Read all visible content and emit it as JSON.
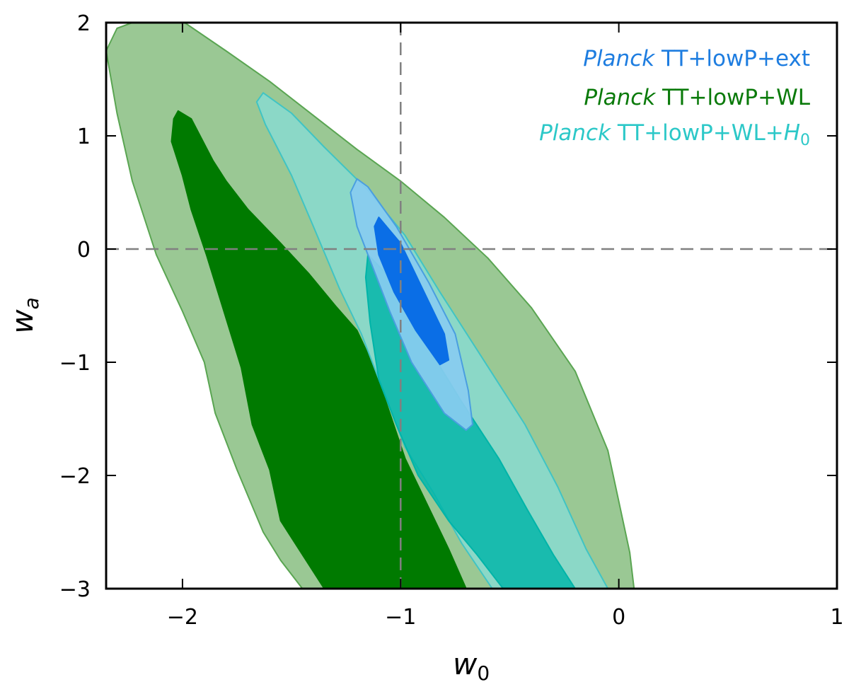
{
  "chart_data": {
    "type": "contour",
    "xlabel": "w",
    "xlabel_sub": "0",
    "ylabel": "w",
    "ylabel_sub": "a",
    "xlim": [
      -2.35,
      1.0
    ],
    "ylim": [
      -3.0,
      2.0
    ],
    "x_ticks": [
      -2,
      -1,
      0,
      1
    ],
    "x_tick_labels": [
      "−2",
      "−1",
      "0",
      "1"
    ],
    "y_ticks": [
      -3,
      -2,
      -1,
      0,
      1,
      2
    ],
    "y_tick_labels": [
      "−3",
      "−2",
      "−1",
      "0",
      "1",
      "2"
    ],
    "reference_lines": {
      "x": -1,
      "y": 0,
      "style": "dashed",
      "color": "#808080"
    },
    "legend_placement": "top-right",
    "series": [
      {
        "name_em": "Planck",
        "name_rest": " TT+lowP+WL",
        "color": "#0a7a0a",
        "contours": [
          {
            "level": "95%",
            "fill": "#9ac894",
            "stroke": "#5aa552",
            "points": [
              [
                -2.35,
                1.75
              ],
              [
                -2.3,
                1.95
              ],
              [
                -2.23,
                2.0
              ],
              [
                -1.99,
                2.0
              ],
              [
                -1.8,
                1.75
              ],
              [
                -1.6,
                1.48
              ],
              [
                -1.4,
                1.18
              ],
              [
                -1.2,
                0.88
              ],
              [
                -1.0,
                0.6
              ],
              [
                -0.8,
                0.28
              ],
              [
                -0.6,
                -0.08
              ],
              [
                -0.4,
                -0.52
              ],
              [
                -0.2,
                -1.08
              ],
              [
                -0.05,
                -1.78
              ],
              [
                0.05,
                -2.68
              ],
              [
                0.07,
                -3.0
              ],
              [
                -1.45,
                -3.0
              ],
              [
                -1.55,
                -2.75
              ],
              [
                -1.63,
                -2.5
              ],
              [
                -1.75,
                -1.95
              ],
              [
                -1.85,
                -1.45
              ],
              [
                -1.9,
                -1.0
              ],
              [
                -2.0,
                -0.55
              ],
              [
                -2.12,
                -0.05
              ],
              [
                -2.23,
                0.6
              ],
              [
                -2.3,
                1.2
              ]
            ]
          },
          {
            "level": "68%",
            "fill": "#007a00",
            "stroke": "#007a00",
            "points": [
              [
                -2.02,
                1.22
              ],
              [
                -1.96,
                1.15
              ],
              [
                -1.86,
                0.78
              ],
              [
                -1.8,
                0.6
              ],
              [
                -1.7,
                0.35
              ],
              [
                -1.55,
                0.05
              ],
              [
                -1.42,
                -0.22
              ],
              [
                -1.3,
                -0.5
              ],
              [
                -1.2,
                -0.72
              ],
              [
                -1.12,
                -1.05
              ],
              [
                -1.05,
                -1.45
              ],
              [
                -0.98,
                -1.85
              ],
              [
                -0.88,
                -2.25
              ],
              [
                -0.78,
                -2.65
              ],
              [
                -0.7,
                -3.0
              ],
              [
                -1.35,
                -3.0
              ],
              [
                -1.45,
                -2.7
              ],
              [
                -1.55,
                -2.4
              ],
              [
                -1.6,
                -1.95
              ],
              [
                -1.68,
                -1.55
              ],
              [
                -1.73,
                -1.05
              ],
              [
                -1.81,
                -0.55
              ],
              [
                -1.89,
                -0.05
              ],
              [
                -1.96,
                0.35
              ],
              [
                -2.0,
                0.65
              ],
              [
                -2.05,
                0.95
              ],
              [
                -2.04,
                1.15
              ]
            ]
          }
        ]
      },
      {
        "name_em": "Planck",
        "name_rest": " TT+lowP+WL+",
        "name_sym": "H",
        "name_sub": "0",
        "color": "#2cc8c8",
        "contours": [
          {
            "level": "95%",
            "fill": "#88dcd2",
            "stroke": "#40c4c4",
            "opacity": 0.82,
            "points": [
              [
                -1.63,
                1.38
              ],
              [
                -1.5,
                1.2
              ],
              [
                -1.35,
                0.9
              ],
              [
                -1.15,
                0.52
              ],
              [
                -0.98,
                0.12
              ],
              [
                -0.82,
                -0.38
              ],
              [
                -0.62,
                -0.98
              ],
              [
                -0.43,
                -1.55
              ],
              [
                -0.28,
                -2.1
              ],
              [
                -0.15,
                -2.65
              ],
              [
                -0.05,
                -3.0
              ],
              [
                -0.58,
                -3.0
              ],
              [
                -0.72,
                -2.6
              ],
              [
                -0.85,
                -2.15
              ],
              [
                -0.98,
                -1.75
              ],
              [
                -1.08,
                -1.25
              ],
              [
                -1.18,
                -0.75
              ],
              [
                -1.28,
                -0.35
              ],
              [
                -1.4,
                0.2
              ],
              [
                -1.5,
                0.65
              ],
              [
                -1.62,
                1.1
              ],
              [
                -1.66,
                1.3
              ]
            ]
          },
          {
            "level": "68%",
            "fill": "#00b4a8",
            "stroke": "#00b4a8",
            "opacity": 0.82,
            "points": [
              [
                -1.15,
                -0.05
              ],
              [
                -1.0,
                -0.35
              ],
              [
                -0.88,
                -0.85
              ],
              [
                -0.72,
                -1.35
              ],
              [
                -0.55,
                -1.85
              ],
              [
                -0.42,
                -2.3
              ],
              [
                -0.3,
                -2.7
              ],
              [
                -0.2,
                -3.0
              ],
              [
                -0.53,
                -3.0
              ],
              [
                -0.65,
                -2.7
              ],
              [
                -0.78,
                -2.4
              ],
              [
                -0.92,
                -2.0
              ],
              [
                -1.02,
                -1.55
              ],
              [
                -1.1,
                -1.15
              ],
              [
                -1.14,
                -0.65
              ],
              [
                -1.16,
                -0.25
              ]
            ]
          }
        ]
      },
      {
        "name_em": "Planck",
        "name_rest": " TT+lowP+ext",
        "color": "#1e7de0",
        "contours": [
          {
            "level": "95%",
            "fill": "#88ccf0",
            "stroke": "#4a9ee0",
            "opacity": 0.92,
            "points": [
              [
                -1.2,
                0.62
              ],
              [
                -1.15,
                0.55
              ],
              [
                -1.02,
                0.2
              ],
              [
                -0.87,
                -0.3
              ],
              [
                -0.75,
                -0.75
              ],
              [
                -0.69,
                -1.25
              ],
              [
                -0.67,
                -1.55
              ],
              [
                -0.7,
                -1.6
              ],
              [
                -0.8,
                -1.45
              ],
              [
                -0.95,
                -1.0
              ],
              [
                -1.05,
                -0.55
              ],
              [
                -1.13,
                -0.15
              ],
              [
                -1.2,
                0.2
              ],
              [
                -1.23,
                0.5
              ]
            ]
          },
          {
            "level": "68%",
            "fill": "#0a6ee6",
            "stroke": "#0a6ee6",
            "points": [
              [
                -1.1,
                0.28
              ],
              [
                -1.0,
                0.05
              ],
              [
                -0.9,
                -0.35
              ],
              [
                -0.8,
                -0.75
              ],
              [
                -0.78,
                -0.98
              ],
              [
                -0.82,
                -1.02
              ],
              [
                -0.93,
                -0.72
              ],
              [
                -1.03,
                -0.38
              ],
              [
                -1.1,
                -0.05
              ],
              [
                -1.12,
                0.2
              ]
            ]
          }
        ]
      }
    ]
  }
}
